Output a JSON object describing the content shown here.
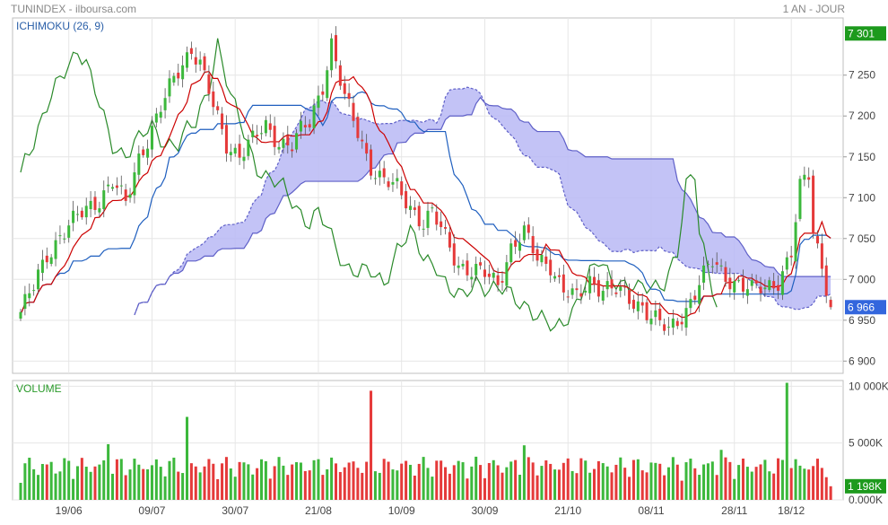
{
  "header": {
    "title": "TUNINDEX - ilboursa.com",
    "period": "1 AN - JOUR"
  },
  "colors": {
    "up": "#3cb83c",
    "down": "#e53a3a",
    "tenkan": "#cc0000",
    "kijun": "#1f5fbf",
    "chikou": "#2a8a2a",
    "cloud": "#b8b8f4",
    "cloud_edge": "#5f60c8",
    "badge_green": "#1d9a1d",
    "badge_blue": "#3366dd"
  },
  "chart_data": [
    {
      "type": "candlestick",
      "title": "ICHIMOKU (26, 9)",
      "y_ticks": [
        6900,
        6950,
        7000,
        7050,
        7100,
        7150,
        7200,
        7250
      ],
      "ylim": [
        6885,
        7320
      ],
      "x_ticks": [
        "19/06",
        "09/07",
        "30/07",
        "21/08",
        "10/09",
        "30/09",
        "21/10",
        "08/11",
        "28/11",
        "18/12"
      ],
      "badges": [
        {
          "label": "7 301",
          "value": 7301,
          "role": "high"
        },
        {
          "label": "6 966",
          "value": 6966,
          "role": "last"
        }
      ],
      "candles": [],
      "series_note": "Ichimoku lines: tenkan, kijun, chikou; kumo cloud"
    },
    {
      "type": "bar",
      "title": "VOLUME",
      "y_ticks": [
        {
          "value": 0,
          "label": "0.000K"
        },
        {
          "value": 5000,
          "label": "5 000K"
        },
        {
          "value": 10000,
          "label": "10 000K"
        }
      ],
      "ylim": [
        0,
        10500
      ],
      "badges": [
        {
          "label": "1 198K",
          "value": 1198
        }
      ],
      "values": [],
      "direction": []
    }
  ]
}
